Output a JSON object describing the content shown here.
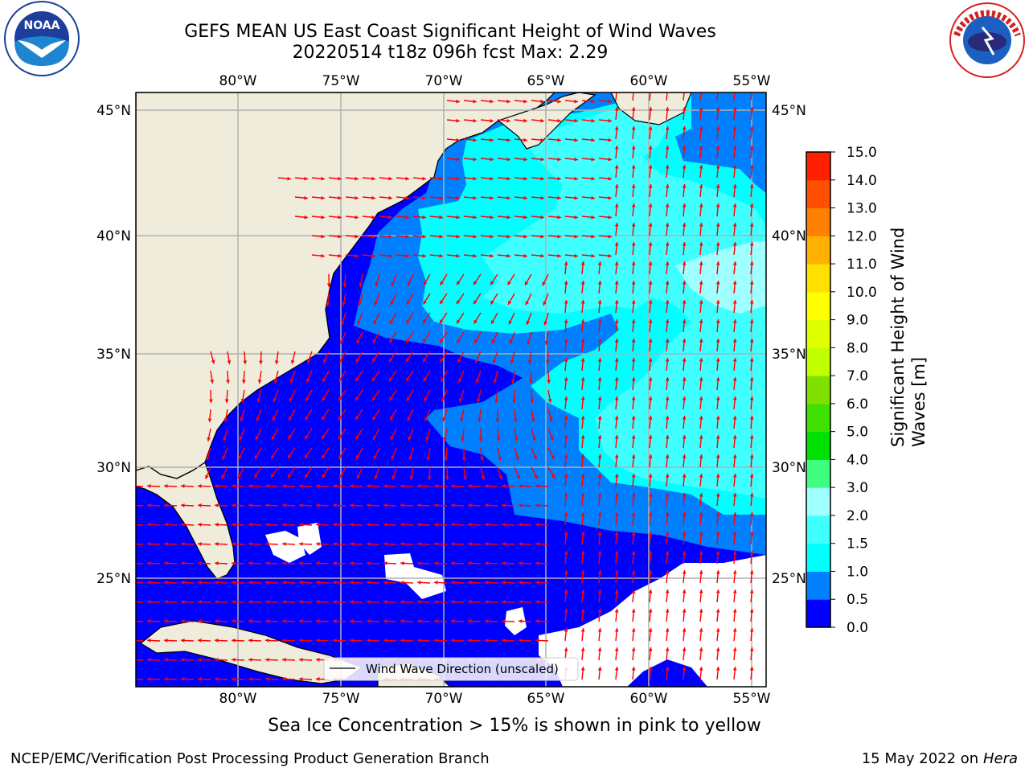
{
  "title_line1": "GEFS MEAN US East Coast Significant Height of Wind Waves",
  "title_line2": "20220514 t18z 096h fcst   Max: 2.29",
  "map": {
    "lon_labels": [
      "80°W",
      "75°W",
      "70°W",
      "65°W",
      "60°W",
      "55°W"
    ],
    "lat_labels": [
      "45°N",
      "40°N",
      "35°N",
      "30°N",
      "25°N"
    ],
    "legend_text": "Wind Wave Direction (unscaled)",
    "colors": {
      "land": "#efecdc",
      "sea_0_05": "#0000ff",
      "sea_05_10": "#0080ff",
      "sea_10_15": "#00ffff",
      "sea_15_20": "#40ffff",
      "sea_20_30": "#a0ffff",
      "arrows": "#ff0000",
      "grid": "#b0b0b0"
    }
  },
  "colorbar": {
    "label_line1": "Significant Height of Wind",
    "label_line2": "Waves [m]",
    "ticks": [
      "15.0",
      "14.0",
      "13.0",
      "12.0",
      "11.0",
      "10.0",
      "9.0",
      "8.0",
      "7.0",
      "6.0",
      "5.0",
      "4.0",
      "3.0",
      "2.0",
      "1.5",
      "1.0",
      "0.5",
      "0.0"
    ],
    "levels_bottom_to_top": [
      {
        "color": "#0000ff"
      },
      {
        "color": "#0080ff"
      },
      {
        "color": "#00ffff"
      },
      {
        "color": "#40ffff"
      },
      {
        "color": "#a0ffff"
      },
      {
        "color": "#40ff80"
      },
      {
        "color": "#00e000"
      },
      {
        "color": "#40e000"
      },
      {
        "color": "#80e000"
      },
      {
        "color": "#c0ff00"
      },
      {
        "color": "#e0ff00"
      },
      {
        "color": "#ffff00"
      },
      {
        "color": "#ffe000"
      },
      {
        "color": "#ffb000"
      },
      {
        "color": "#ff8000"
      },
      {
        "color": "#ff5000"
      },
      {
        "color": "#ff2000"
      }
    ]
  },
  "sea_ice_note": "Sea Ice Concentration > 15% is shown in pink to yellow",
  "footer_left": "NCEP/EMC/Verification Post Processing Product Generation Branch",
  "footer_right_date": "15 May 2022 on",
  "footer_right_host": "Hera",
  "logos": {
    "left": "NOAA",
    "right": "NATIONAL WEATHER SERVICE"
  }
}
